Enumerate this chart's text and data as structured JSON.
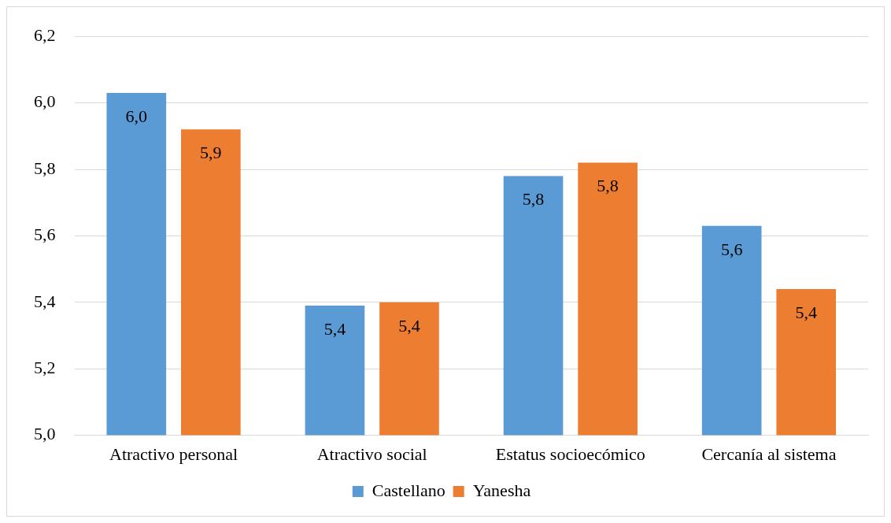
{
  "chart_data": {
    "type": "bar",
    "categories": [
      "Atractivo personal",
      "Atractivo social",
      "Estatus socioecómico",
      "Cercanía al sistema"
    ],
    "series": [
      {
        "name": "Castellano",
        "color": "#5b9bd5",
        "values": [
          6.03,
          5.39,
          5.78,
          5.63
        ],
        "value_labels": [
          "6,0",
          "5,4",
          "5,8",
          "5,6"
        ]
      },
      {
        "name": "Yanesha",
        "color": "#ed7d31",
        "values": [
          5.92,
          5.4,
          5.82,
          5.44
        ],
        "value_labels": [
          "5,9",
          "5,4",
          "5,8",
          "5,4"
        ]
      }
    ],
    "ylim": [
      5.0,
      6.2
    ],
    "yticks": [
      {
        "value": 5.0,
        "label": "5,0"
      },
      {
        "value": 5.2,
        "label": "5,2"
      },
      {
        "value": 5.4,
        "label": "5,4"
      },
      {
        "value": 5.6,
        "label": "5,6"
      },
      {
        "value": 5.8,
        "label": "5,8"
      },
      {
        "value": 6.0,
        "label": "6,0"
      },
      {
        "value": 6.2,
        "label": "6,2"
      }
    ],
    "grid": "y",
    "legend": "bottom"
  }
}
